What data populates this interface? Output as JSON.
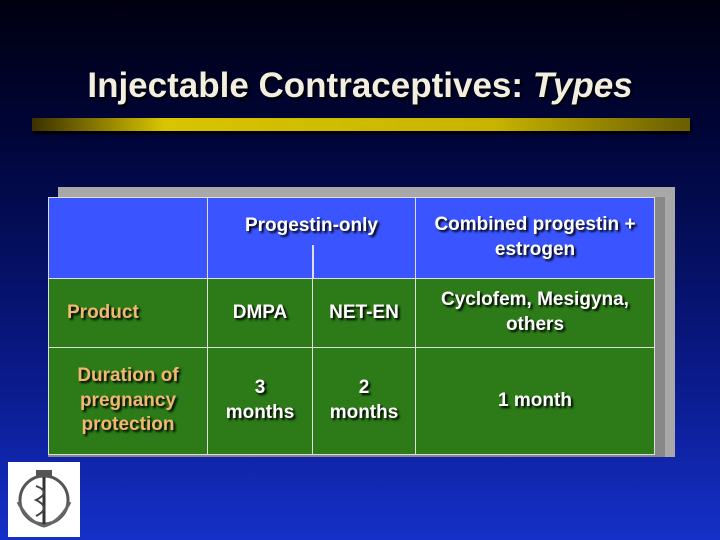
{
  "title": {
    "main": "Injectable Contraceptives:",
    "emphasis": "Types"
  },
  "table": {
    "header": [
      "Progestin-only",
      "Combined progestin + estrogen"
    ],
    "rows": [
      [
        "Product",
        "DMPA",
        "NET-EN",
        "Cyclofem, Mesigyna, others"
      ],
      [
        "Duration of pregnancy protection",
        "3 months",
        "2 months",
        "1 month"
      ]
    ]
  }
}
